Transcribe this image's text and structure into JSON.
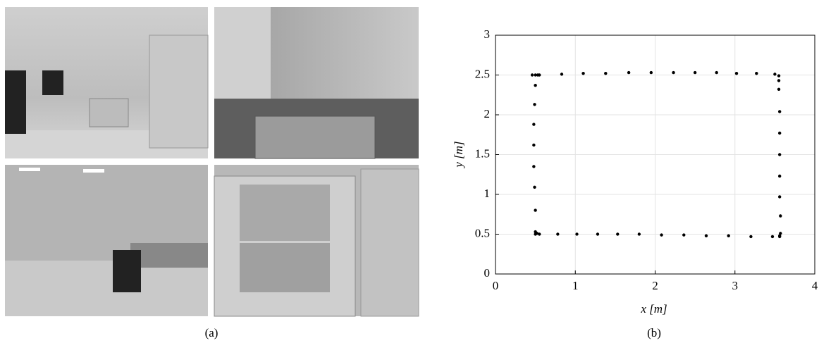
{
  "captions": [
    "(a)",
    "(b)"
  ],
  "chart_data": {
    "type": "scatter",
    "xlabel": "x [m]",
    "ylabel": "y [m]",
    "x": [
      0.46,
      0.5,
      0.53,
      0.55,
      0.83,
      1.1,
      1.38,
      1.67,
      1.95,
      2.23,
      2.5,
      2.77,
      3.02,
      3.27,
      3.5,
      3.55,
      0.5,
      0.49,
      0.48,
      0.48,
      0.48,
      0.49,
      0.5,
      0.5,
      0.52,
      0.5,
      0.55,
      0.78,
      1.02,
      1.28,
      1.53,
      1.8,
      2.08,
      2.36,
      2.64,
      2.92,
      3.2,
      3.47,
      3.56,
      3.55,
      3.55,
      3.56,
      3.56,
      3.56,
      3.56,
      3.56,
      3.57,
      3.57,
      3.56
    ],
    "values": [
      2.5,
      2.5,
      2.5,
      2.5,
      2.51,
      2.52,
      2.52,
      2.53,
      2.53,
      2.53,
      2.53,
      2.53,
      2.52,
      2.52,
      2.51,
      2.49,
      2.37,
      2.13,
      1.88,
      1.62,
      1.35,
      1.09,
      0.8,
      0.53,
      0.51,
      0.5,
      0.5,
      0.5,
      0.5,
      0.5,
      0.5,
      0.5,
      0.49,
      0.49,
      0.48,
      0.48,
      0.47,
      0.47,
      0.47,
      2.43,
      2.32,
      2.04,
      1.77,
      1.5,
      1.23,
      0.97,
      0.73,
      0.51,
      0.48
    ],
    "color": "#000000",
    "xlim": [
      0,
      4
    ],
    "ylim": [
      0,
      3
    ],
    "xticks": [
      0,
      1,
      2,
      3,
      4
    ],
    "yticks": [
      0,
      0.5,
      1,
      1.5,
      2,
      2.5,
      3
    ],
    "grid": true
  }
}
